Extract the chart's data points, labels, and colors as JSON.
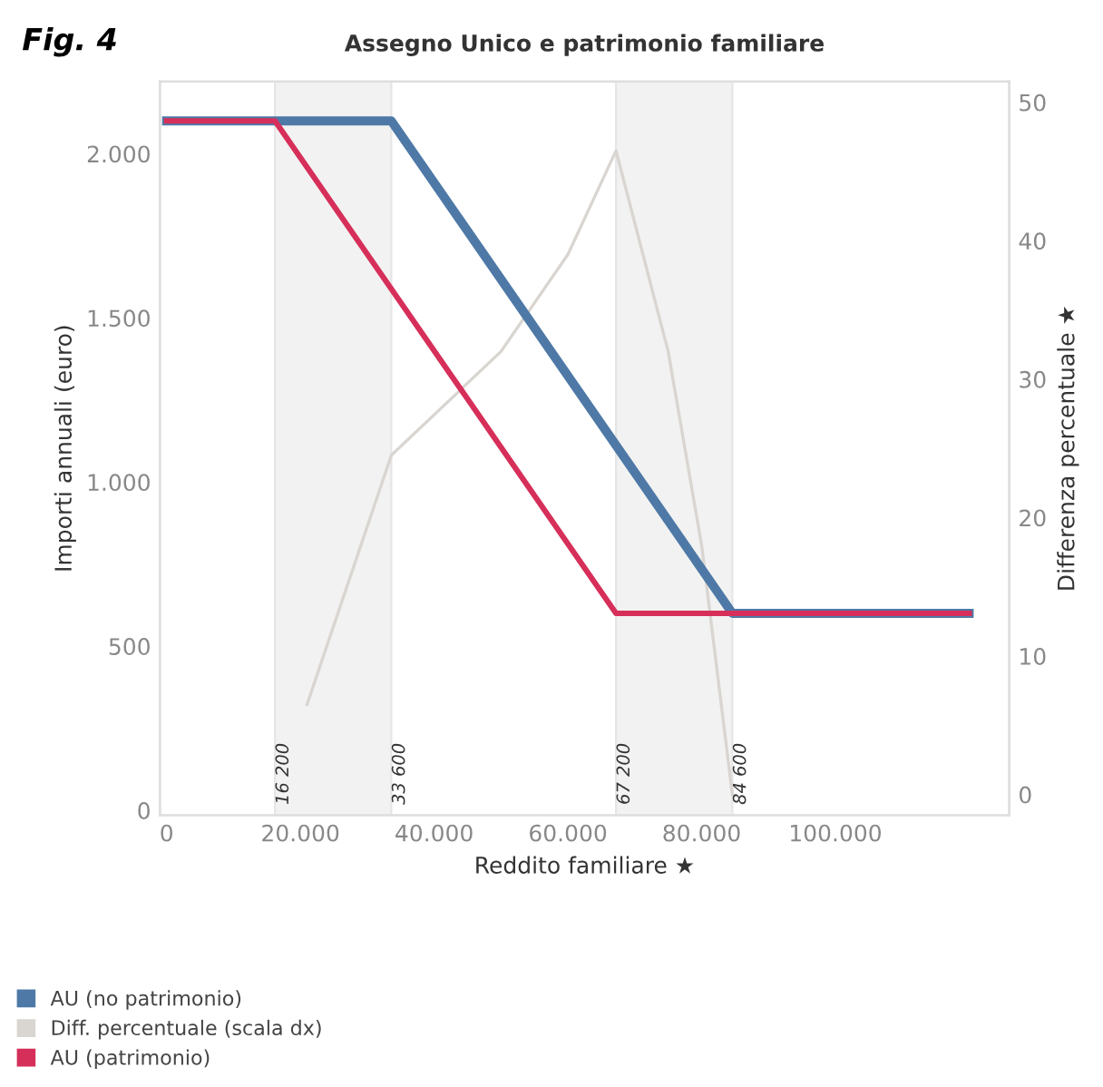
{
  "chart_data": {
    "type": "line",
    "title": "Assegno Unico e patrimonio familiare",
    "xlabel": "Reddito familiare ★",
    "ylabel": "Importi annuali (euro)",
    "y2label": "Differenza percentuale ★",
    "annotations": [
      "Fig. 4"
    ],
    "xlim": [
      -1000,
      126000
    ],
    "xticks": [
      0,
      {
        "value": 20000,
        "label": "20.000"
      },
      {
        "value": 40000,
        "label": "40.000"
      },
      {
        "value": 60000,
        "label": "60.000"
      },
      {
        "value": 80000,
        "label": "80.000"
      },
      {
        "value": 100000,
        "label": "100.000"
      }
    ],
    "ylim": [
      -15,
      2220
    ],
    "yticks": [
      0,
      500,
      {
        "value": 1000,
        "label": "1.000"
      },
      {
        "value": 1500,
        "label": "1.500"
      },
      {
        "value": 2000,
        "label": "2.000"
      }
    ],
    "y2lim": [
      -1.5,
      51.5
    ],
    "y2ticks": [
      0,
      10,
      20,
      30,
      40,
      50
    ],
    "series": [
      {
        "name": "AU (no patrimonio)",
        "color": "#4e79a7",
        "x": [
          0,
          33600,
          84600,
          120000
        ],
        "values": [
          2100,
          2100,
          600,
          600
        ]
      },
      {
        "name": "Diff. percentuale (scala dx)",
        "color": "#d9d5d0",
        "axis": "y2",
        "x": [
          21000,
          33600,
          50000,
          60000,
          67200,
          75000,
          80000,
          84600
        ],
        "values": [
          6.5,
          24.5,
          32,
          39,
          46.5,
          32,
          18,
          0
        ]
      },
      {
        "name": "AU (patrimonio)",
        "color": "#d62f5a",
        "x": [
          0,
          16200,
          67200,
          120000
        ],
        "values": [
          2100,
          2100,
          600,
          600
        ]
      }
    ],
    "bands": [
      {
        "axis": "x",
        "from": 16200,
        "to": 33600,
        "color": "#f2f2f2"
      },
      {
        "axis": "x",
        "from": 67200,
        "to": 84600,
        "color": "#f2f2f2"
      }
    ],
    "ref_lines": [
      {
        "axis": "x",
        "value": 16200,
        "label": "16 200",
        "color": "#e6e6e6"
      },
      {
        "axis": "x",
        "value": 33600,
        "label": "33 600",
        "color": "#e6e6e6"
      },
      {
        "axis": "x",
        "value": 67200,
        "label": "67 200",
        "color": "#e6e6e6"
      },
      {
        "axis": "x",
        "value": 84600,
        "label": "84 600",
        "color": "#e6e6e6"
      }
    ],
    "legend": "bottom left",
    "grid": false,
    "marker": "none",
    "line_style": "solid"
  }
}
